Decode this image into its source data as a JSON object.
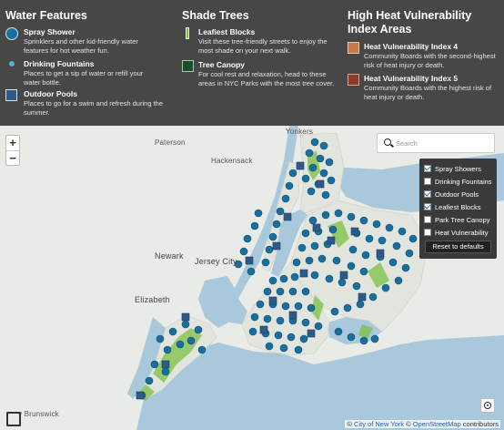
{
  "legend": {
    "water": {
      "title": "Water Features",
      "items": [
        {
          "name": "Spray Shower",
          "desc": "Sprinklers and other kid-friendly water features for hot weather fun.",
          "color": "#1a6e9e",
          "icon": "spray-shower-icon"
        },
        {
          "name": "Drinking Fountains",
          "desc": "Places to get a sip of water or refill your water bottle.",
          "color": "#4fb5cf",
          "icon": "drinking-fountain-icon"
        },
        {
          "name": "Outdoor Pools",
          "desc": "Places to go for a swim and refresh during the summer.",
          "color": "#2d5a8a",
          "icon": "outdoor-pool-icon"
        }
      ]
    },
    "shade": {
      "title": "Shade Trees",
      "items": [
        {
          "name": "Leafiest Blocks",
          "desc": "Visit these tree-friendly streets to enjoy the most shade on your next walk.",
          "color": "#7cc043",
          "icon": "leafiest-block-icon"
        },
        {
          "name": "Tree Canopy",
          "desc": "For cool rest and relaxation, head to these areas in NYC Parks with the most tree cover.",
          "color": "#1d4d2a",
          "icon": "tree-canopy-icon"
        }
      ]
    },
    "heat": {
      "title": "High Heat Vulnerability Index Areas",
      "items": [
        {
          "name": "Heat Vulnerability Index 4",
          "desc": "Community Boards with the second-highest risk of heat injury or death.",
          "color": "#c47a4a",
          "icon": "hvi-4-icon"
        },
        {
          "name": "Heat Vulnerability Index 5",
          "desc": "Community Boards with the highest risk of heat injury or death.",
          "color": "#8e3a26",
          "icon": "hvi-5-icon"
        }
      ]
    }
  },
  "map": {
    "zoom_in": "+",
    "zoom_out": "−",
    "search_placeholder": "Search",
    "layers": [
      {
        "label": "Spray Showers",
        "checked": true
      },
      {
        "label": "Drinking Fountains",
        "checked": false
      },
      {
        "label": "Outdoor Pools",
        "checked": true
      },
      {
        "label": "Leafiest Blocks",
        "checked": true
      },
      {
        "label": "Park Tree Canopy",
        "checked": false
      },
      {
        "label": "Heat Vulnerability",
        "checked": false
      }
    ],
    "reset_label": "Reset to defaults",
    "places": {
      "paterson": "Paterson",
      "yonkers": "Yonkers",
      "hackensack": "Hackensack",
      "newark": "Newark",
      "jersey_city": "Jersey City",
      "elizabeth": "Elizabeth",
      "brunswick": "v Brunswick"
    },
    "attribution": {
      "prefix": "© ",
      "city": "City of New York",
      "sep": " © ",
      "osm": "OpenStreetMap",
      "suffix": " contributors"
    },
    "colors": {
      "water": "#aac8db",
      "land": "#e9ebe6",
      "spray": "#1a6e9e",
      "pool": "#2d5a8a",
      "leafy": "#7cc043"
    }
  }
}
